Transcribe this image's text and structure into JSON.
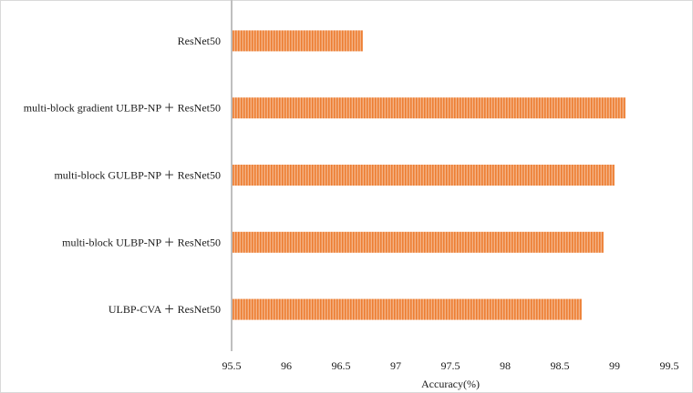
{
  "chart_data": {
    "type": "bar",
    "orientation": "horizontal",
    "title": "",
    "xlabel": "Accuracy(%)",
    "ylabel": "",
    "xlim": [
      95.5,
      99.5
    ],
    "xticks": [
      "95.5",
      "96",
      "96.5",
      "97",
      "97.5",
      "98",
      "98.5",
      "99",
      "99.5"
    ],
    "grid": false,
    "legend": "none",
    "categories": [
      "ResNet50",
      "multi-block gradient ULBP-NP ＋ ResNet50",
      "multi-block GULBP-NP ＋ ResNet50",
      "multi-block ULBP-NP ＋ ResNet50",
      "ULBP-CVA ＋ ResNet50"
    ],
    "values": [
      96.7,
      99.1,
      99.0,
      98.9,
      98.7
    ],
    "colors": {
      "bar_fill": "#f4b183",
      "bar_stripe": "#ed7d31",
      "axis": "#bfbfbf",
      "border": "#d9d9d9"
    }
  }
}
